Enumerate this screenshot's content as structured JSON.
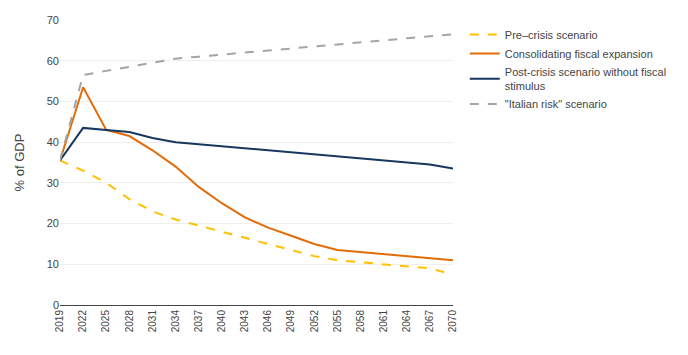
{
  "chart_data": {
    "type": "line",
    "x": [
      2019,
      2022,
      2025,
      2028,
      2031,
      2034,
      2037,
      2040,
      2043,
      2046,
      2049,
      2052,
      2055,
      2058,
      2061,
      2064,
      2067,
      2070
    ],
    "series": [
      {
        "name": "Pre–crisis scenario",
        "color": "#FFC000",
        "line_style": "dashed",
        "values": [
          35.5,
          33.0,
          30.0,
          26.0,
          23.0,
          21.0,
          19.5,
          18.0,
          16.5,
          15.0,
          13.5,
          12.0,
          11.0,
          10.5,
          10.0,
          9.5,
          9.0,
          7.5
        ]
      },
      {
        "name": "Consolidating fiscal expansion",
        "color": "#E36C09",
        "line_style": "solid",
        "values": [
          35.5,
          53.5,
          43.0,
          41.5,
          38.0,
          34.0,
          29.0,
          25.0,
          21.5,
          19.0,
          17.0,
          15.0,
          13.5,
          13.0,
          12.5,
          12.0,
          11.5,
          11.0
        ]
      },
      {
        "name": "Post-crisis scenario without fiscal\nstimulus",
        "color": "#17375E",
        "line_style": "solid",
        "values": [
          35.5,
          43.5,
          43.0,
          42.5,
          41.0,
          40.0,
          39.5,
          39.0,
          38.5,
          38.0,
          37.5,
          37.0,
          36.5,
          36.0,
          35.5,
          35.0,
          34.5,
          33.5
        ]
      },
      {
        "name": "\"Italian risk\" scenario",
        "color": "#A5A5A5",
        "line_style": "dashed",
        "values": [
          35.5,
          56.5,
          57.5,
          58.5,
          59.5,
          60.5,
          61.0,
          61.5,
          62.0,
          62.5,
          63.0,
          63.5,
          64.0,
          64.5,
          65.0,
          65.5,
          66.0,
          66.5
        ]
      }
    ],
    "ylabel": "% of GDP",
    "xlim": [
      2019,
      2070
    ],
    "xticks": [
      2019,
      2022,
      2025,
      2028,
      2031,
      2034,
      2037,
      2040,
      2043,
      2046,
      2049,
      2052,
      2055,
      2058,
      2061,
      2064,
      2067,
      2070
    ],
    "ylim": [
      0,
      70
    ],
    "yticks": [
      0,
      10,
      20,
      30,
      40,
      50,
      60,
      70
    ],
    "grid": "y",
    "legend": "right"
  }
}
